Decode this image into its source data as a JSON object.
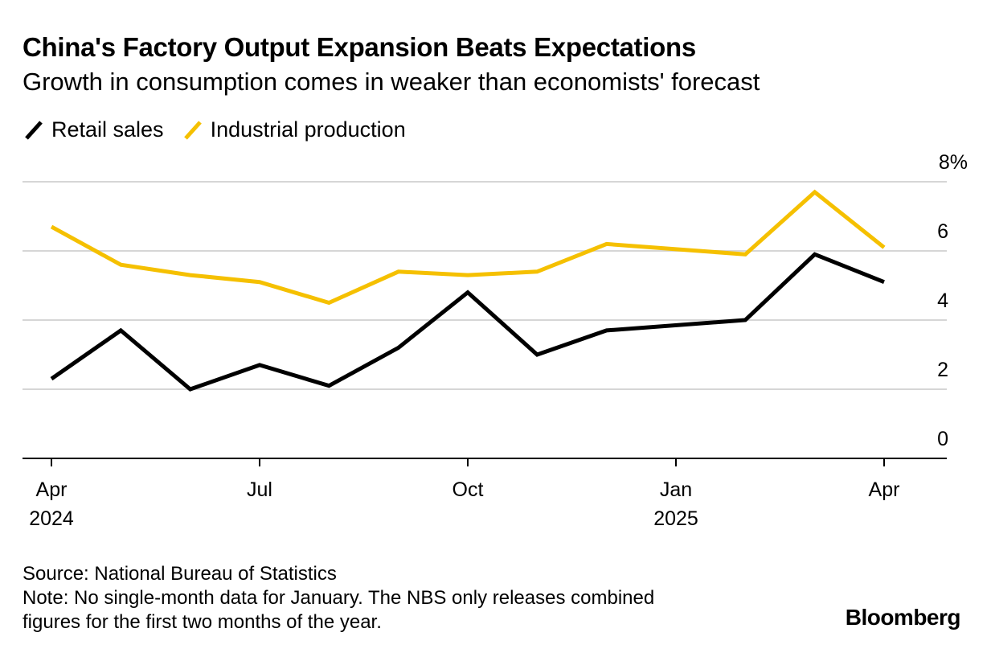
{
  "title": "China's Factory Output Expansion Beats Expectations",
  "subtitle": "Growth in consumption comes in weaker than economists' forecast",
  "legend": [
    {
      "label": "Retail sales",
      "color": "#000000"
    },
    {
      "label": "Industrial production",
      "color": "#f5c000"
    }
  ],
  "source": "Source: National Bureau of Statistics",
  "note_line1": "Note: No single-month data for January. The NBS only releases combined",
  "note_line2": "figures for the first two months of the year.",
  "brand": "Bloomberg",
  "chart_data": {
    "type": "line",
    "x": [
      "2024-04",
      "2024-05",
      "2024-06",
      "2024-07",
      "2024-08",
      "2024-09",
      "2024-10",
      "2024-11",
      "2024-12",
      "2025-02",
      "2025-03",
      "2025-04"
    ],
    "series": [
      {
        "name": "Retail sales",
        "color": "#000000",
        "values": [
          2.3,
          3.7,
          2.0,
          2.7,
          2.1,
          3.2,
          4.8,
          3.0,
          3.7,
          4.0,
          5.9,
          5.1
        ]
      },
      {
        "name": "Industrial production",
        "color": "#f5c000",
        "values": [
          6.7,
          5.6,
          5.3,
          5.1,
          4.5,
          5.4,
          5.3,
          5.4,
          6.2,
          5.9,
          7.7,
          6.1
        ]
      }
    ],
    "ylim": [
      0,
      8
    ],
    "yticks": [
      0,
      2,
      4,
      6,
      8
    ],
    "ytick_labels": [
      "0",
      "2",
      "4",
      "6",
      "8%"
    ],
    "xticks": [
      {
        "x": "2024-04",
        "label": "Apr",
        "year": "2024"
      },
      {
        "x": "2024-07",
        "label": "Jul",
        "year": ""
      },
      {
        "x": "2024-10",
        "label": "Oct",
        "year": ""
      },
      {
        "x": "2025-01",
        "label": "Jan",
        "year": "2025"
      },
      {
        "x": "2025-04",
        "label": "Apr",
        "year": ""
      }
    ],
    "grid": true
  }
}
